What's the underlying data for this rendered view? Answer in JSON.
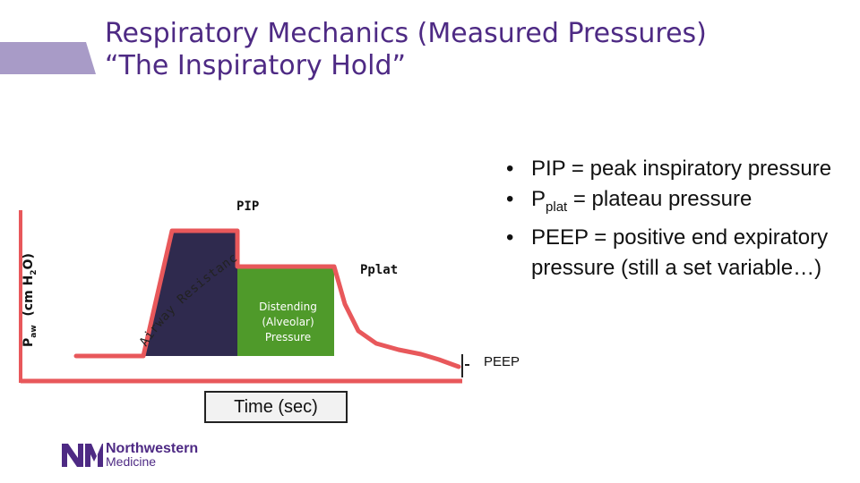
{
  "slide": {
    "title_line1": "Respiratory Mechanics (Measured Pressures)",
    "title_line2": "“The Inspiratory Hold”"
  },
  "diagram": {
    "y_axis_label": "Paw (cm H2O)",
    "pip_label": "PIP",
    "pplat_label": "Pplat",
    "peep_label": "PEEP",
    "resistance_label": "Airway Resistance",
    "distending_lines": [
      "Distending",
      "(Alveolar)",
      "Pressure"
    ],
    "time_label": "Time (sec)",
    "colors": {
      "curve": "#e8585b",
      "resistance": "#2f2a4e",
      "distending": "#4f9a2a",
      "accent": "#4e2a84"
    }
  },
  "bullets": [
    {
      "text": "PIP = peak inspiratory pressure"
    },
    {
      "prefix": "P",
      "sub": "plat",
      "suffix": " = plateau pressure"
    },
    {
      "text": "PEEP = positive end expiratory pressure (still a set variable…)"
    }
  ],
  "logo": {
    "line1": "Northwestern",
    "line2": "Medicine",
    "mark": "NM"
  }
}
